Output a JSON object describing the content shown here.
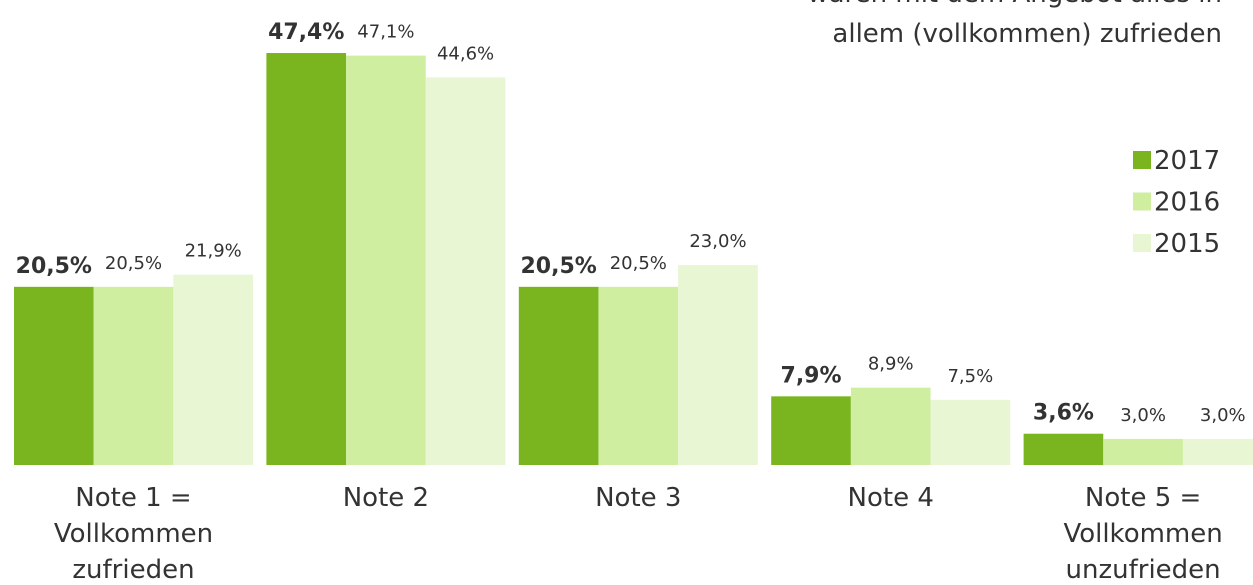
{
  "chart_data": {
    "type": "bar",
    "annotation": [
      "waren mit dem Angebot alles in",
      "allem (vollkommen) zufrieden"
    ],
    "categories": [
      "Note 1 =\nVollkommen\nzufrieden",
      "Note 2",
      "Note 3",
      "Note 4",
      "Note 5 =\nVollkommen\nunzufrieden"
    ],
    "series": [
      {
        "name": "2017",
        "color": "#7ab51f",
        "values": [
          20.5,
          47.4,
          20.5,
          7.9,
          3.6
        ],
        "value_labels": [
          "20,5%",
          "47,4%",
          "20,5%",
          "7,9%",
          "3,6%"
        ]
      },
      {
        "name": "2016",
        "color": "#cfeea0",
        "values": [
          20.5,
          47.1,
          20.5,
          8.9,
          3.0
        ],
        "value_labels": [
          "20,5%",
          "47,1%",
          "20,5%",
          "8,9%",
          "3,0%"
        ]
      },
      {
        "name": "2015",
        "color": "#e8f6d4",
        "values": [
          21.9,
          44.6,
          23.0,
          7.5,
          3.0
        ],
        "value_labels": [
          "21,9%",
          "44,6%",
          "23,0%",
          "7,5%",
          "3,0%"
        ]
      }
    ],
    "ylim": [
      0,
      53.5
    ],
    "legend": "right"
  }
}
